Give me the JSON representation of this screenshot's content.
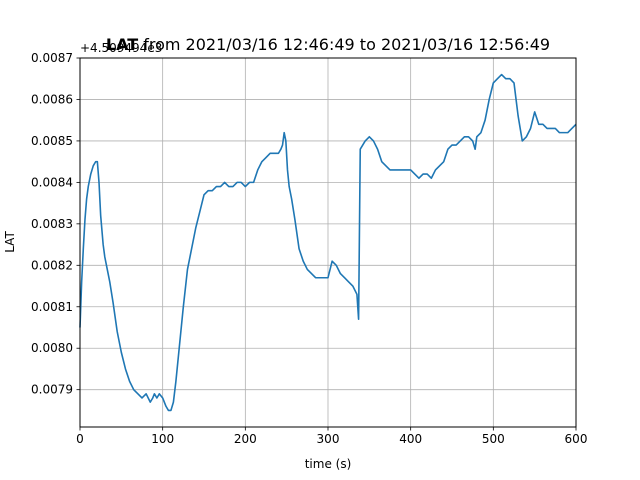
{
  "chart_data": {
    "type": "line",
    "title_bold": "LAT",
    "title_rest": " from 2021/03/16 12:46:49 to 2021/03/16 12:56:49",
    "offset_label": "+4.509494e3",
    "xlabel": "time (s)",
    "ylabel": "LAT",
    "xlim": [
      0,
      600
    ],
    "ylim": [
      0.00781,
      0.0087
    ],
    "grid": true,
    "xticks": [
      0,
      100,
      200,
      300,
      400,
      500,
      600
    ],
    "xtick_labels": [
      "0",
      "100",
      "200",
      "300",
      "400",
      "500",
      "600"
    ],
    "yticks": [
      0.0079,
      0.008,
      0.0081,
      0.0082,
      0.0083,
      0.0084,
      0.0085,
      0.0086,
      0.0087
    ],
    "ytick_labels": [
      "0.0079",
      "0.0080",
      "0.0081",
      "0.0082",
      "0.0083",
      "0.0084",
      "0.0085",
      "0.0086",
      "0.0087"
    ],
    "color": "#1f77b4",
    "series": [
      {
        "x": [
          0,
          2,
          4,
          6,
          8,
          10,
          13,
          16,
          19,
          21,
          23,
          25,
          28,
          30,
          33,
          36,
          40,
          45,
          50,
          55,
          60,
          65,
          70,
          75,
          80,
          85,
          88,
          90,
          93,
          96,
          100,
          104,
          107,
          110,
          113,
          116,
          120,
          125,
          130,
          135,
          140,
          145,
          150,
          155,
          160,
          165,
          170,
          175,
          180,
          185,
          190,
          195,
          200,
          205,
          210,
          215,
          220,
          225,
          230,
          235,
          240,
          243,
          245,
          247,
          249,
          251,
          253,
          256,
          260,
          265,
          270,
          275,
          280,
          285,
          290,
          295,
          300,
          305,
          310,
          315,
          320,
          325,
          330,
          335,
          337,
          339,
          342,
          345,
          350,
          355,
          360,
          365,
          370,
          375,
          380,
          385,
          390,
          395,
          400,
          405,
          410,
          415,
          420,
          425,
          430,
          435,
          440,
          445,
          450,
          455,
          460,
          465,
          470,
          475,
          478,
          480,
          485,
          490,
          495,
          500,
          505,
          510,
          515,
          520,
          525,
          530,
          535,
          540,
          545,
          550,
          555,
          560,
          565,
          570,
          575,
          580,
          585,
          590,
          595,
          600
        ],
        "y": [
          0.00805,
          0.00816,
          0.00824,
          0.00831,
          0.00836,
          0.00839,
          0.00842,
          0.00844,
          0.00845,
          0.00845,
          0.0084,
          0.00832,
          0.00825,
          0.00822,
          0.00819,
          0.00816,
          0.00811,
          0.00804,
          0.00799,
          0.00795,
          0.00792,
          0.0079,
          0.00789,
          0.00788,
          0.00789,
          0.00787,
          0.00788,
          0.00789,
          0.00788,
          0.00789,
          0.00788,
          0.00786,
          0.00785,
          0.00785,
          0.00787,
          0.00792,
          0.008,
          0.0081,
          0.00819,
          0.00824,
          0.00829,
          0.00833,
          0.00837,
          0.00838,
          0.00838,
          0.00839,
          0.00839,
          0.0084,
          0.00839,
          0.00839,
          0.0084,
          0.0084,
          0.00839,
          0.0084,
          0.0084,
          0.00843,
          0.00845,
          0.00846,
          0.00847,
          0.00847,
          0.00847,
          0.00848,
          0.00849,
          0.00852,
          0.0085,
          0.00843,
          0.00839,
          0.00836,
          0.00831,
          0.00824,
          0.00821,
          0.00819,
          0.00818,
          0.00817,
          0.00817,
          0.00817,
          0.00817,
          0.00821,
          0.0082,
          0.00818,
          0.00817,
          0.00816,
          0.00815,
          0.00813,
          0.00807,
          0.00848,
          0.00849,
          0.0085,
          0.00851,
          0.0085,
          0.00848,
          0.00845,
          0.00844,
          0.00843,
          0.00843,
          0.00843,
          0.00843,
          0.00843,
          0.00843,
          0.00842,
          0.00841,
          0.00842,
          0.00842,
          0.00841,
          0.00843,
          0.00844,
          0.00845,
          0.00848,
          0.00849,
          0.00849,
          0.0085,
          0.00851,
          0.00851,
          0.0085,
          0.00848,
          0.00851,
          0.00852,
          0.00855,
          0.0086,
          0.00864,
          0.00865,
          0.00866,
          0.00865,
          0.00865,
          0.00864,
          0.00856,
          0.0085,
          0.00851,
          0.00853,
          0.00857,
          0.00854,
          0.00854,
          0.00853,
          0.00853,
          0.00853,
          0.00852,
          0.00852,
          0.00852,
          0.00853,
          0.00854
        ]
      }
    ]
  }
}
